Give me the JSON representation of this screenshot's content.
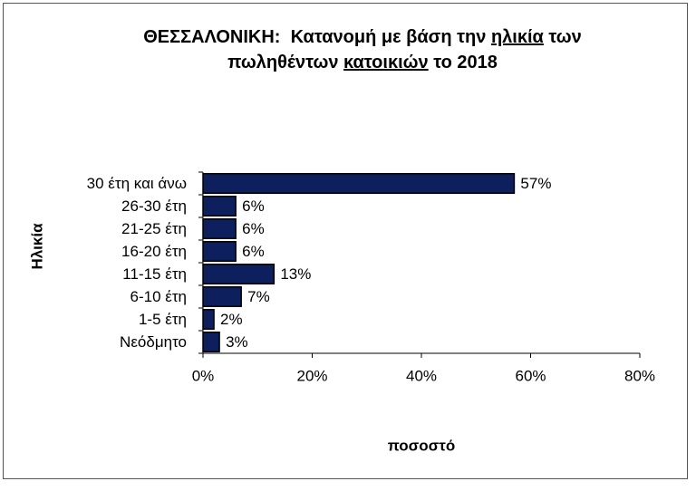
{
  "chart_data": {
    "type": "bar",
    "orientation": "horizontal",
    "title_lines": [
      [
        {
          "text": "ΘΕΣΣΑΛΟΝΙΚΗ:  Κατανομή με βάση την ",
          "underline": false
        },
        {
          "text": "ηλικία",
          "underline": true
        },
        {
          "text": " των",
          "underline": false
        }
      ],
      [
        {
          "text": "πωληθέντων ",
          "underline": false
        },
        {
          "text": "κατοικιών",
          "underline": true
        },
        {
          "text": " το 2018",
          "underline": false
        }
      ]
    ],
    "x_label": "ποσοστό",
    "y_label": "Ηλικία",
    "categories": [
      "30 έτη και άνω",
      "26-30 έτη",
      "21-25 έτη",
      "16-20 έτη",
      "11-15 έτη",
      "6-10 έτη",
      "1-5 έτη",
      "Νεόδμητο"
    ],
    "values": [
      57,
      6,
      6,
      6,
      13,
      7,
      2,
      3
    ],
    "value_labels": [
      "57%",
      "6%",
      "6%",
      "6%",
      "13%",
      "7%",
      "2%",
      "3%"
    ],
    "color": "#0d1f5c",
    "xlim": [
      0,
      80
    ],
    "xticks": [
      {
        "value": 0,
        "label": "0%"
      },
      {
        "value": 20,
        "label": "20%"
      },
      {
        "value": 40,
        "label": "40%"
      },
      {
        "value": 60,
        "label": "60%"
      },
      {
        "value": 80,
        "label": "80%"
      }
    ],
    "grid": false
  }
}
